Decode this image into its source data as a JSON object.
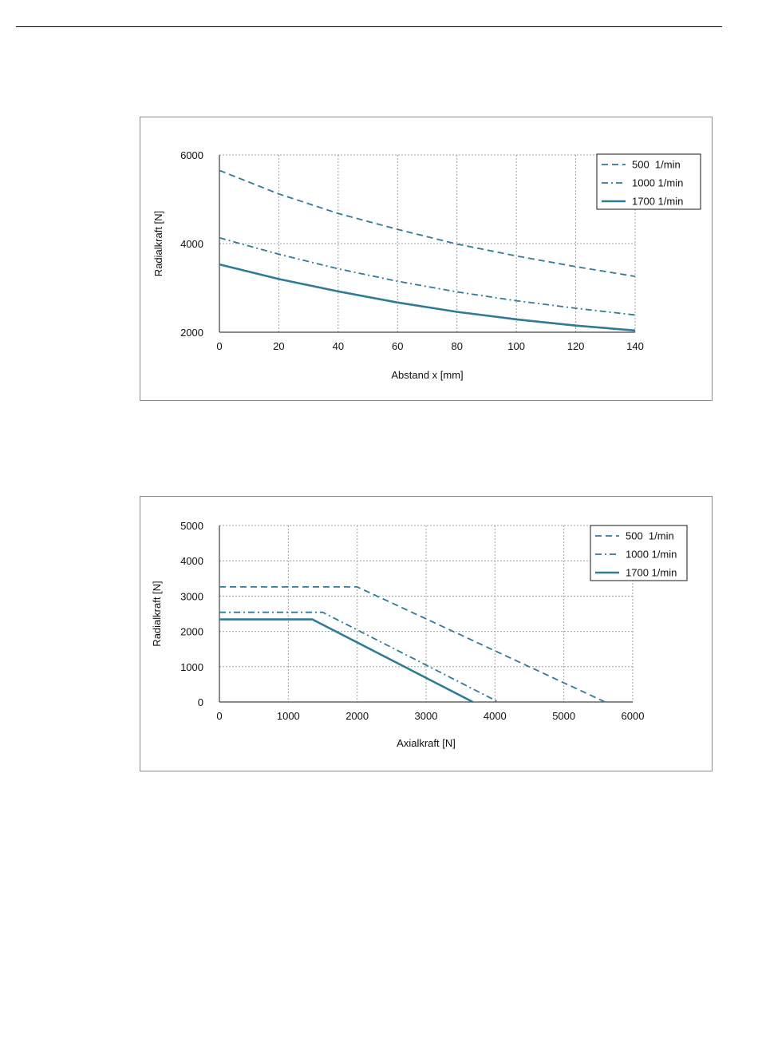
{
  "chart_data": [
    {
      "type": "line",
      "title": "",
      "xlabel": "Abstand x [mm]",
      "ylabel": "Radialkraft [N]",
      "xlim": [
        0,
        140
      ],
      "ylim": [
        2000,
        6000
      ],
      "xticks": [
        0,
        20,
        40,
        60,
        80,
        100,
        120,
        140
      ],
      "yticks": [
        2000,
        4000,
        6000
      ],
      "xtick_labels": [
        "0",
        "20",
        "40",
        "60",
        "80",
        "100",
        "120",
        "140"
      ],
      "ytick_labels": [
        "2000",
        "4000",
        "6000"
      ],
      "grid": true,
      "legend_position": "top-right",
      "series": [
        {
          "name": "500  1/min",
          "dash": "dash",
          "x": [
            0,
            20,
            40,
            60,
            80,
            100,
            120,
            140
          ],
          "y": [
            5650,
            5120,
            4680,
            4320,
            3990,
            3720,
            3480,
            3260
          ]
        },
        {
          "name": "1000 1/min",
          "dash": "dashdot",
          "x": [
            0,
            20,
            40,
            60,
            80,
            100,
            120,
            140
          ],
          "y": [
            4130,
            3760,
            3430,
            3150,
            2910,
            2710,
            2540,
            2390
          ]
        },
        {
          "name": "1700 1/min",
          "dash": "solid",
          "x": [
            0,
            20,
            40,
            60,
            80,
            100,
            120,
            140
          ],
          "y": [
            3530,
            3200,
            2920,
            2670,
            2460,
            2290,
            2150,
            2040
          ]
        }
      ]
    },
    {
      "type": "line",
      "title": "",
      "xlabel": "Axialkraft [N]",
      "ylabel": "Radialkraft [N]",
      "xlim": [
        0,
        6000
      ],
      "ylim": [
        0,
        5000
      ],
      "xticks": [
        0,
        1000,
        2000,
        3000,
        4000,
        5000,
        6000
      ],
      "yticks": [
        0,
        1000,
        2000,
        3000,
        4000,
        5000
      ],
      "xtick_labels": [
        "0",
        "1000",
        "2000",
        "3000",
        "4000",
        "5000",
        "6000"
      ],
      "ytick_labels": [
        "0",
        "1000",
        "2000",
        "3000",
        "4000",
        "5000"
      ],
      "grid": true,
      "legend_position": "top-right",
      "series": [
        {
          "name": "500  1/min",
          "dash": "dash",
          "x": [
            0,
            2000,
            5600
          ],
          "y": [
            3260,
            3260,
            0
          ]
        },
        {
          "name": "1000 1/min",
          "dash": "dashdot",
          "x": [
            0,
            1500,
            4050
          ],
          "y": [
            2540,
            2540,
            0
          ]
        },
        {
          "name": "1700 1/min",
          "dash": "solid",
          "x": [
            0,
            1350,
            3680
          ],
          "y": [
            2340,
            2340,
            0
          ]
        }
      ]
    }
  ],
  "colors": {
    "series": "#2e7a97",
    "grid": "#a0a0a0",
    "axis": "#1a1a1a",
    "frame": "#8c8c8c"
  }
}
